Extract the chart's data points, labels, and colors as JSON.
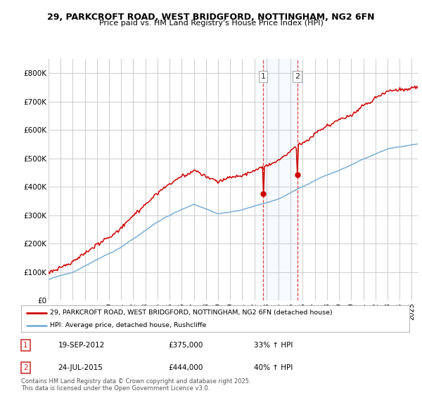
{
  "title1": "29, PARKCROFT ROAD, WEST BRIDGFORD, NOTTINGHAM, NG2 6FN",
  "title2": "Price paid vs. HM Land Registry's House Price Index (HPI)",
  "bg_color": "#ffffff",
  "plot_bg": "#ffffff",
  "grid_color": "#cccccc",
  "red_color": "#cc0000",
  "blue_color": "#7bafd4",
  "sale1_date": "19-SEP-2012",
  "sale1_price": 375000,
  "sale1_hpi": "33% ↑ HPI",
  "sale2_date": "24-JUL-2015",
  "sale2_price": 444000,
  "sale2_hpi": "40% ↑ HPI",
  "legend1": "29, PARKCROFT ROAD, WEST BRIDGFORD, NOTTINGHAM, NG2 6FN (detached house)",
  "legend2": "HPI: Average price, detached house, Rushcliffe",
  "footer": "Contains HM Land Registry data © Crown copyright and database right 2025.\nThis data is licensed under the Open Government Licence v3.0.",
  "ylim": [
    0,
    850000
  ],
  "yticks": [
    0,
    100000,
    200000,
    300000,
    400000,
    500000,
    600000,
    700000,
    800000
  ],
  "ytick_labels": [
    "£0",
    "£100K",
    "£200K",
    "£300K",
    "£400K",
    "£500K",
    "£600K",
    "£700K",
    "£800K"
  ],
  "sale1_x": 2012.72,
  "sale2_x": 2015.55
}
